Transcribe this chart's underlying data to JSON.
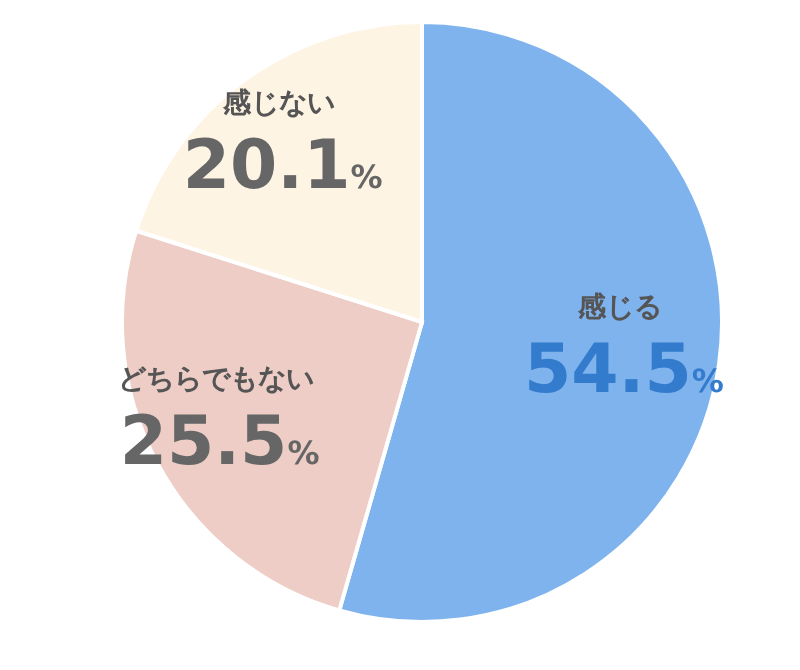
{
  "chart_data": {
    "type": "pie",
    "categories": [
      "感じる",
      "どちらでもない",
      "感じない"
    ],
    "values": [
      54.5,
      25.5,
      20.1
    ],
    "colors": [
      "#7fb3ee",
      "#edcdc5",
      "#fdf4e4"
    ],
    "value_labels": [
      "54.5%",
      "25.5%",
      "20.1%"
    ],
    "legend": false
  }
}
